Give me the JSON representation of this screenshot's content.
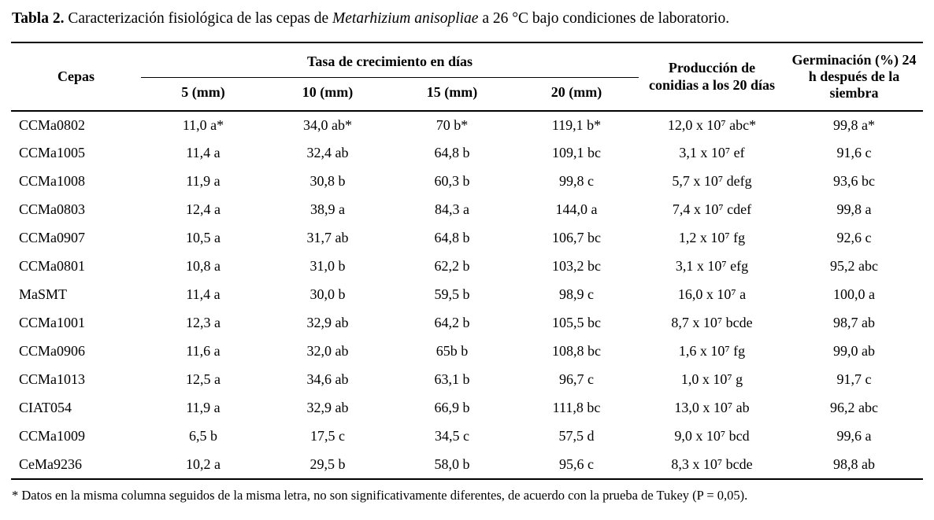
{
  "caption": {
    "label": "Tabla 2.",
    "before_italic": " Caracterización fisiológica de las cepas de ",
    "italic": "Metarhizium anisopliae",
    "after_italic": " a 26 °C bajo condiciones de laboratorio."
  },
  "table": {
    "col_cepas": "Cepas",
    "group_growth": "Tasa de crecimiento en días",
    "subheaders": [
      "5 (mm)",
      "10 (mm)",
      "15 (mm)",
      "20 (mm)"
    ],
    "col_conidias": "Producción de conidias a los 20 días",
    "col_germinacion": "Germinación (%) 24 h después de la siembra",
    "rows": [
      [
        "CCMa0802",
        "11,0 a*",
        "34,0 ab*",
        "70 b*",
        "119,1 b*",
        "12,0 x 10⁷ abc*",
        "99,8 a*"
      ],
      [
        "CCMa1005",
        "11,4 a",
        "32,4 ab",
        "64,8 b",
        "109,1 bc",
        "3,1 x 10⁷ ef",
        "91,6 c"
      ],
      [
        "CCMa1008",
        "11,9 a",
        "30,8 b",
        "60,3 b",
        "99,8 c",
        "5,7 x 10⁷ defg",
        "93,6 bc"
      ],
      [
        "CCMa0803",
        "12,4 a",
        "38,9 a",
        "84,3 a",
        "144,0 a",
        "7,4 x 10⁷ cdef",
        "99,8 a"
      ],
      [
        "CCMa0907",
        "10,5 a",
        "31,7 ab",
        "64,8 b",
        "106,7 bc",
        "1,2 x 10⁷ fg",
        "92,6 c"
      ],
      [
        "CCMa0801",
        "10,8 a",
        "31,0 b",
        "62,2 b",
        "103,2 bc",
        "3,1 x 10⁷ efg",
        "95,2 abc"
      ],
      [
        "MaSMT",
        "11,4 a",
        "30,0 b",
        "59,5 b",
        "98,9 c",
        "16,0 x 10⁷ a",
        "100,0 a"
      ],
      [
        "CCMa1001",
        "12,3 a",
        "32,9 ab",
        "64,2 b",
        "105,5 bc",
        "8,7 x 10⁷ bcde",
        "98,7 ab"
      ],
      [
        "CCMa0906",
        "11,6 a",
        "32,0 ab",
        "65b b",
        "108,8 bc",
        "1,6 x 10⁷ fg",
        "99,0 ab"
      ],
      [
        "CCMa1013",
        "12,5 a",
        "34,6 ab",
        "63,1 b",
        "96,7 c",
        "1,0 x 10⁷ g",
        "91,7 c"
      ],
      [
        "CIAT054",
        "11,9 a",
        "32,9 ab",
        "66,9 b",
        "111,8 bc",
        "13,0 x 10⁷ ab",
        "96,2 abc"
      ],
      [
        "CCMa1009",
        "6,5 b",
        "17,5 c",
        "34,5 c",
        "57,5 d",
        "9,0 x 10⁷ bcd",
        "99,6 a"
      ],
      [
        "CeMa9236",
        "10,2 a",
        "29,5 b",
        "58,0 b",
        "95,6 c",
        "8,3 x 10⁷ bcde",
        "98,8 ab"
      ]
    ]
  },
  "footnote": "* Datos en la misma columna seguidos de la misma letra, no son significativamente diferentes, de acuerdo con la prueba de Tukey (P = 0,05)."
}
